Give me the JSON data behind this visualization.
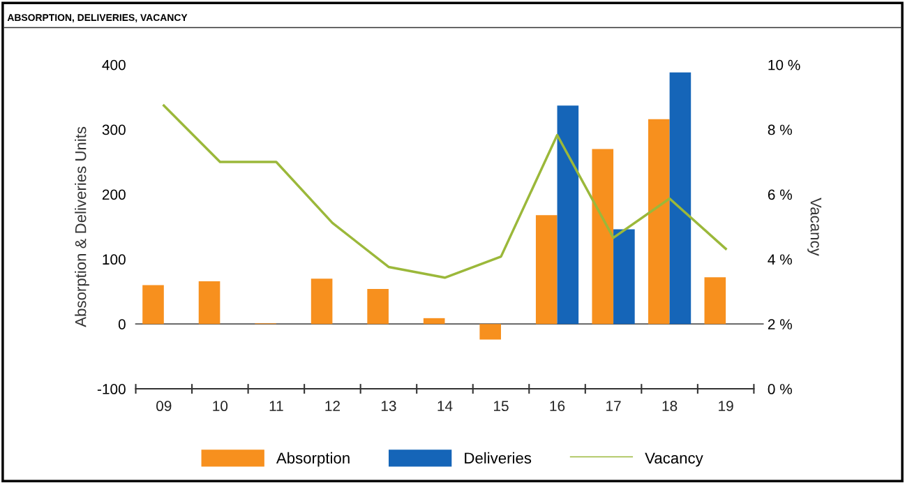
{
  "chart_data": {
    "type": "bar",
    "title": "ABSORPTION, DELIVERIES, VACANCY",
    "ylabel": "Absorption & Deliveries Units",
    "y2label": "Vacancy",
    "categories": [
      "09",
      "10",
      "11",
      "12",
      "13",
      "14",
      "15",
      "16",
      "17",
      "18",
      "19"
    ],
    "series": [
      {
        "name": "Absorption",
        "color": "#f7901e",
        "values": [
          60,
          66,
          1,
          70,
          54,
          9,
          -24,
          168,
          270,
          316,
          72
        ]
      },
      {
        "name": "Deliveries",
        "color": "#1565b8",
        "values": [
          0,
          0,
          0,
          0,
          0,
          0,
          0,
          337,
          146,
          388,
          0
        ]
      },
      {
        "name": "Vacancy",
        "type": "line",
        "axis": "y2",
        "color": "#9bb83a",
        "values": [
          8.74,
          7.0,
          7.0,
          5.12,
          3.76,
          3.43,
          4.08,
          7.83,
          4.66,
          5.87,
          4.32
        ]
      }
    ],
    "ylim": [
      -100,
      400
    ],
    "yticks": [
      -100,
      0,
      100,
      200,
      300,
      400
    ],
    "y2lim": [
      0,
      10
    ],
    "y2ticks": [
      {
        "value": 0,
        "label": "0 %"
      },
      {
        "value": 2,
        "label": "2 %"
      },
      {
        "value": 4,
        "label": "4 %"
      },
      {
        "value": 6,
        "label": "6 %"
      },
      {
        "value": 8,
        "label": "8 %"
      },
      {
        "value": 10,
        "label": "10 %"
      }
    ],
    "ref_lines": [
      {
        "axis": "y",
        "value": 0,
        "color": "#555555"
      }
    ],
    "grid": false,
    "legend": "bottom"
  }
}
